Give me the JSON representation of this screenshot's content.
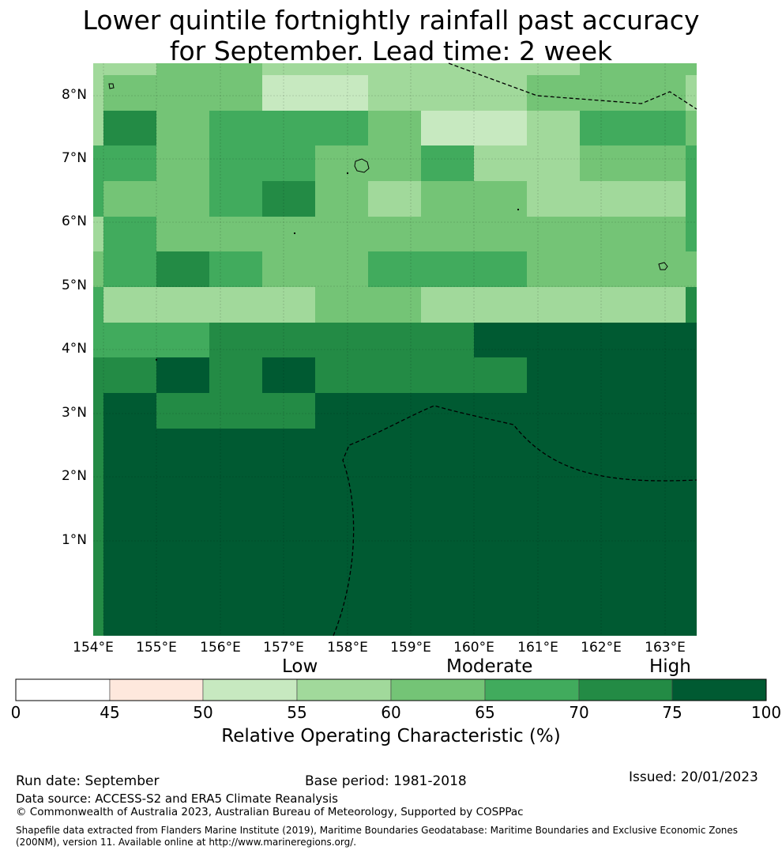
{
  "title_line1": "Lower quintile fortnightly rainfall past accuracy",
  "title_line2": "for September. Lead time: 2 week",
  "map": {
    "lon_labels": [
      "154°E",
      "155°E",
      "156°E",
      "157°E",
      "158°E",
      "159°E",
      "160°E",
      "161°E",
      "162°E",
      "163°E"
    ],
    "lat_labels": [
      "8°N",
      "7°N",
      "6°N",
      "5°N",
      "4°N",
      "3°N",
      "2°N",
      "1°N"
    ],
    "grid_rows_north_to_south": [
      "a23322222233",
      "a3331122233a",
      "d5344431124b",
      "c4344334223e",
      "c3345323322e",
      "d4333333333e",
      "b4543344433b",
      "c2222332222f",
      "c4455555666g",
      "f5656555566g",
      "f6555666666g",
      "f6666777777g",
      "f6666777777g",
      "f6666777777g",
      "f6666777777g",
      "f6666777777g",
      "f6666777777g"
    ]
  },
  "legend": {
    "categories": [
      "Low",
      "Moderate",
      "High"
    ],
    "ticks": [
      "0",
      "45",
      "50",
      "55",
      "60",
      "65",
      "70",
      "75",
      "100"
    ],
    "label": "Relative Operating Characteristic (%)",
    "colors": [
      "#ffffff",
      "#fee8dd",
      "#c7e9c0",
      "#a1d99b",
      "#74c476",
      "#41ab5d",
      "#238b45",
      "#005a32"
    ]
  },
  "footer": {
    "run_date": "Run date: September",
    "base_period": "Base period: 1981-2018",
    "issued": "Issued: 20/01/2023",
    "data_source": "Data source: ACCESS-S2 and ERA5 Climate Reanalysis",
    "copyright": "© Commonwealth of Australia 2023, Australian Bureau of Meteorology, Supported by COSPPac",
    "shapefile": "Shapefile data extracted from Flanders Marine Institute (2019), Maritime Boundaries Geodatabase: Maritime Boundaries and Exclusive Economic Zones (200NM), version 11. Available online at http://www.marineregions.org/."
  }
}
